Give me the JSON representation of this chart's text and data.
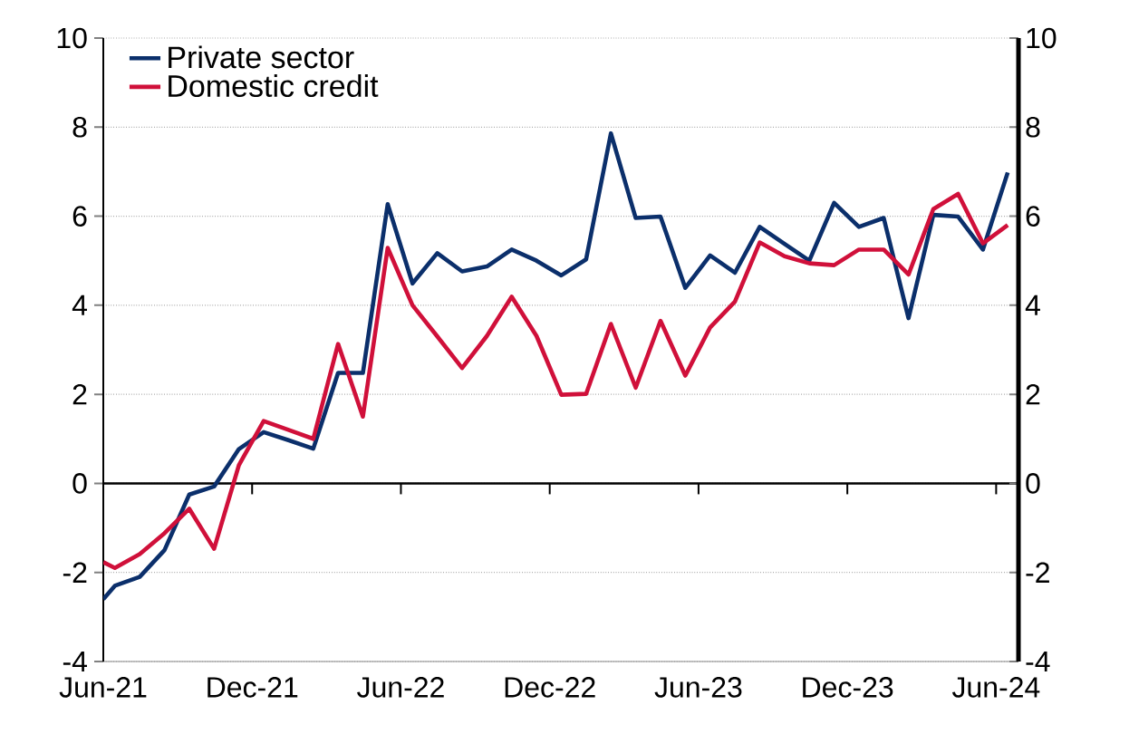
{
  "chart_data": {
    "type": "line",
    "x": [
      "2021-06-01",
      "2021-06-15",
      "2021-07-15",
      "2021-08-15",
      "2021-09-15",
      "2021-10-15",
      "2021-11-15",
      "2021-12-15",
      "2022-01-15",
      "2022-02-15",
      "2022-03-15",
      "2022-04-15",
      "2022-05-15",
      "2022-06-15",
      "2022-07-15",
      "2022-08-15",
      "2022-09-15",
      "2022-10-15",
      "2022-11-15",
      "2022-12-15",
      "2023-01-15",
      "2023-02-15",
      "2023-03-15",
      "2023-04-15",
      "2023-05-15",
      "2023-06-15",
      "2023-07-15",
      "2023-08-15",
      "2023-09-15",
      "2023-10-15",
      "2023-11-15",
      "2023-12-15",
      "2024-01-15",
      "2024-02-15",
      "2024-03-15",
      "2024-04-15",
      "2024-05-15",
      "2024-06-15"
    ],
    "series": [
      {
        "name": "Private sector",
        "color": "#0b2f6b",
        "values": [
          -2.6,
          -2.3,
          -2.1,
          -1.5,
          -0.25,
          -0.07,
          0.77,
          1.15,
          0.97,
          0.78,
          2.48,
          2.48,
          6.27,
          4.49,
          5.17,
          4.76,
          4.87,
          5.25,
          5.0,
          4.67,
          5.03,
          7.86,
          5.96,
          5.99,
          4.39,
          5.12,
          4.73,
          5.76,
          5.38,
          5.0,
          6.3,
          5.76,
          5.96,
          3.71,
          6.03,
          5.99,
          5.25,
          6.98
        ]
      },
      {
        "name": "Domestic credit",
        "color": "#d0103a",
        "values": [
          -1.77,
          -1.9,
          -1.59,
          -1.12,
          -0.57,
          -1.47,
          0.41,
          1.4,
          1.2,
          1.0,
          3.13,
          1.5,
          5.29,
          4.0,
          3.3,
          2.59,
          3.31,
          4.19,
          3.31,
          1.99,
          2.01,
          3.58,
          2.15,
          3.65,
          2.42,
          3.5,
          4.08,
          5.41,
          5.1,
          4.94,
          4.9,
          5.25,
          5.25,
          4.69,
          6.16,
          6.5,
          5.39,
          5.8
        ]
      }
    ],
    "xlim": [
      "2021-06-01",
      "2024-06-28"
    ],
    "xticks": [
      {
        "value": "2021-06-01",
        "label": "Jun-21"
      },
      {
        "value": "2021-12-01",
        "label": "Dec-21"
      },
      {
        "value": "2022-06-01",
        "label": "Jun-22"
      },
      {
        "value": "2022-12-01",
        "label": "Dec-22"
      },
      {
        "value": "2023-06-01",
        "label": "Jun-23"
      },
      {
        "value": "2023-12-01",
        "label": "Dec-23"
      },
      {
        "value": "2024-06-01",
        "label": "Jun-24"
      }
    ],
    "ylim": [
      -4,
      10
    ],
    "yticks": [
      -4,
      -2,
      0,
      2,
      4,
      6,
      8,
      10
    ],
    "y2lim": [
      -4,
      10
    ],
    "y2ticks": [
      -4,
      -2,
      0,
      2,
      4,
      6,
      8,
      10
    ],
    "grid": "y",
    "legend": "top left",
    "marker": "none",
    "line_style": "solid"
  }
}
